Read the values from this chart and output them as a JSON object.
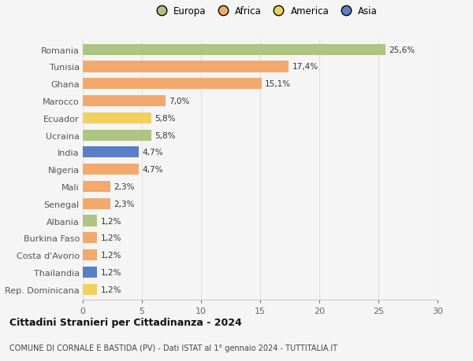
{
  "countries": [
    "Romania",
    "Tunisia",
    "Ghana",
    "Marocco",
    "Ecuador",
    "Ucraina",
    "India",
    "Nigeria",
    "Mali",
    "Senegal",
    "Albania",
    "Burkina Faso",
    "Costa d'Avorio",
    "Thailandia",
    "Rep. Dominicana"
  ],
  "values": [
    25.6,
    17.4,
    15.1,
    7.0,
    5.8,
    5.8,
    4.7,
    4.7,
    2.3,
    2.3,
    1.2,
    1.2,
    1.2,
    1.2,
    1.2
  ],
  "labels": [
    "25,6%",
    "17,4%",
    "15,1%",
    "7,0%",
    "5,8%",
    "5,8%",
    "4,7%",
    "4,7%",
    "2,3%",
    "2,3%",
    "1,2%",
    "1,2%",
    "1,2%",
    "1,2%",
    "1,2%"
  ],
  "continents": [
    "Europa",
    "Africa",
    "Africa",
    "Africa",
    "America",
    "Europa",
    "Asia",
    "Africa",
    "Africa",
    "Africa",
    "Europa",
    "Africa",
    "Africa",
    "Asia",
    "America"
  ],
  "colors": {
    "Europa": "#aec483",
    "Africa": "#f2a96e",
    "America": "#f2d060",
    "Asia": "#5b7ec8"
  },
  "legend_order": [
    "Europa",
    "Africa",
    "America",
    "Asia"
  ],
  "title": "Cittadini Stranieri per Cittadinanza - 2024",
  "subtitle": "COMUNE DI CORNALE E BASTIDA (PV) - Dati ISTAT al 1° gennaio 2024 - TUTTITALIA.IT",
  "xlim": [
    0,
    30
  ],
  "xticks": [
    0,
    5,
    10,
    15,
    20,
    25,
    30
  ],
  "bg_color": "#f5f5f5",
  "grid_color": "#e0e0e0",
  "bar_height": 0.65
}
